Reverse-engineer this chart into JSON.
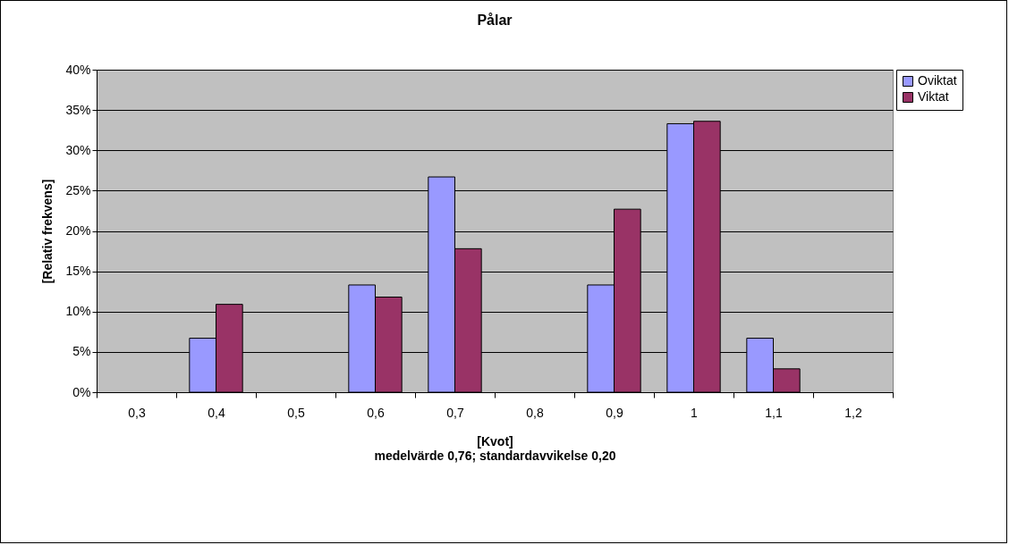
{
  "chart_data": {
    "type": "bar",
    "title": "Pålar",
    "xlabel": "[Kvot]",
    "ylabel": "[Relativ frekvens]",
    "annotations": [
      "medelvärde 0,76; standardavvikelse 0,20"
    ],
    "categories": [
      "0,3",
      "0,4",
      "0,5",
      "0,6",
      "0,7",
      "0,8",
      "0,9",
      "1",
      "1,1",
      "1,2"
    ],
    "series": [
      {
        "name": "Oviktat",
        "color": "#9999ff",
        "values": [
          0,
          6.7,
          0,
          13.3,
          26.7,
          0,
          13.3,
          33.3,
          6.7,
          0
        ]
      },
      {
        "name": "Viktat",
        "color": "#993366",
        "values": [
          0,
          10.9,
          0,
          11.8,
          17.8,
          0,
          22.7,
          33.6,
          2.9,
          0
        ]
      }
    ],
    "ylim": [
      0,
      40
    ],
    "yticks": [
      {
        "value": 0,
        "label": "0%"
      },
      {
        "value": 5,
        "label": "5%"
      },
      {
        "value": 10,
        "label": "10%"
      },
      {
        "value": 15,
        "label": "15%"
      },
      {
        "value": 20,
        "label": "20%"
      },
      {
        "value": 25,
        "label": "25%"
      },
      {
        "value": 30,
        "label": "30%"
      },
      {
        "value": 35,
        "label": "35%"
      },
      {
        "value": 40,
        "label": "40%"
      }
    ],
    "grid": "y",
    "legend": "right"
  }
}
